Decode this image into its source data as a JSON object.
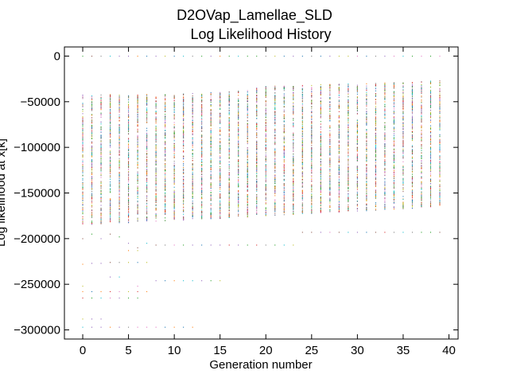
{
  "chart_data": {
    "type": "scatter",
    "title": "D2OVap_Lamellae_SLD",
    "subtitle": "Log Likelihood History",
    "xlabel": "Generation number",
    "ylabel": "Log likelihood at x[k]",
    "xlim": [
      -2,
      41
    ],
    "ylim": [
      -310000,
      10000
    ],
    "xticks": [
      0,
      5,
      10,
      15,
      20,
      25,
      30,
      35,
      40
    ],
    "yticks": [
      0,
      -50000,
      -100000,
      -150000,
      -200000,
      -250000,
      -300000
    ],
    "x_tick_labels": [
      "0",
      "5",
      "10",
      "15",
      "20",
      "25",
      "30",
      "35",
      "40"
    ],
    "y_tick_labels": [
      "0",
      "−50000",
      "−100000",
      "−150000",
      "−200000",
      "−250000",
      "−300000"
    ],
    "grid": false,
    "marker": "dot",
    "generations": {
      "start": 0,
      "end": 39
    },
    "series": [
      {
        "description": "population members per generation",
        "dense_band": [
          {
            "x": 0,
            "range": [
              -185000,
              -42000
            ]
          },
          {
            "x": 10,
            "range": [
              -180000,
              -42000
            ]
          },
          {
            "x": 16,
            "range": [
              -178000,
              -38000
            ]
          },
          {
            "x": 20,
            "range": [
              -175000,
              -33000
            ]
          },
          {
            "x": 30,
            "range": [
              -170000,
              -30000
            ]
          },
          {
            "x": 39,
            "range": [
              -165000,
              -27000
            ]
          }
        ],
        "outliers": [
          {
            "x": 0,
            "y": 0
          },
          {
            "x": 1,
            "y": 0
          },
          {
            "x": 2,
            "y": 0
          },
          {
            "x": 3,
            "y": 0
          },
          {
            "x": 4,
            "y": 0
          },
          {
            "x": 5,
            "y": 0
          },
          {
            "x": 6,
            "y": 0
          },
          {
            "x": 7,
            "y": 0
          },
          {
            "x": 8,
            "y": 0
          },
          {
            "x": 9,
            "y": 0
          },
          {
            "x": 10,
            "y": 0
          },
          {
            "x": 11,
            "y": 0
          },
          {
            "x": 12,
            "y": 0
          },
          {
            "x": 13,
            "y": 0
          },
          {
            "x": 14,
            "y": 0
          },
          {
            "x": 15,
            "y": 0
          },
          {
            "x": 16,
            "y": 0
          },
          {
            "x": 17,
            "y": 0
          },
          {
            "x": 18,
            "y": 0
          },
          {
            "x": 19,
            "y": 0
          },
          {
            "x": 20,
            "y": 0
          },
          {
            "x": 21,
            "y": 0
          },
          {
            "x": 22,
            "y": 0
          },
          {
            "x": 23,
            "y": 0
          },
          {
            "x": 24,
            "y": 0
          },
          {
            "x": 25,
            "y": 0
          },
          {
            "x": 26,
            "y": 0
          },
          {
            "x": 27,
            "y": 0
          },
          {
            "x": 28,
            "y": 0
          },
          {
            "x": 29,
            "y": 0
          },
          {
            "x": 30,
            "y": 0
          },
          {
            "x": 31,
            "y": 0
          },
          {
            "x": 32,
            "y": 0
          },
          {
            "x": 33,
            "y": 0
          },
          {
            "x": 34,
            "y": 0
          },
          {
            "x": 35,
            "y": 0
          },
          {
            "x": 36,
            "y": 0
          },
          {
            "x": 37,
            "y": 0
          },
          {
            "x": 38,
            "y": 0
          },
          {
            "x": 39,
            "y": 0
          },
          {
            "x": 0,
            "y": -200000
          },
          {
            "x": 1,
            "y": -195000
          },
          {
            "x": 2,
            "y": -200000
          },
          {
            "x": 3,
            "y": -195000
          },
          {
            "x": 4,
            "y": -198000
          },
          {
            "x": 5,
            "y": -205000
          },
          {
            "x": 6,
            "y": -210000
          },
          {
            "x": 7,
            "y": -205000
          },
          {
            "x": 8,
            "y": -207000
          },
          {
            "x": 9,
            "y": -207000
          },
          {
            "x": 10,
            "y": -207000
          },
          {
            "x": 11,
            "y": -207000
          },
          {
            "x": 12,
            "y": -207000
          },
          {
            "x": 13,
            "y": -207000
          },
          {
            "x": 14,
            "y": -207000
          },
          {
            "x": 15,
            "y": -207000
          },
          {
            "x": 16,
            "y": -207000
          },
          {
            "x": 17,
            "y": -207000
          },
          {
            "x": 18,
            "y": -207000
          },
          {
            "x": 19,
            "y": -207000
          },
          {
            "x": 20,
            "y": -207000
          },
          {
            "x": 21,
            "y": -207000
          },
          {
            "x": 22,
            "y": -207000
          },
          {
            "x": 23,
            "y": -207000
          },
          {
            "x": 24,
            "y": -193000
          },
          {
            "x": 25,
            "y": -193000
          },
          {
            "x": 26,
            "y": -193000
          },
          {
            "x": 27,
            "y": -193000
          },
          {
            "x": 28,
            "y": -193000
          },
          {
            "x": 29,
            "y": -193000
          },
          {
            "x": 30,
            "y": -193000
          },
          {
            "x": 31,
            "y": -193000
          },
          {
            "x": 32,
            "y": -193000
          },
          {
            "x": 33,
            "y": -193000
          },
          {
            "x": 34,
            "y": -193000
          },
          {
            "x": 35,
            "y": -193000
          },
          {
            "x": 36,
            "y": -193000
          },
          {
            "x": 37,
            "y": -193000
          },
          {
            "x": 38,
            "y": -193000
          },
          {
            "x": 39,
            "y": -193000
          },
          {
            "x": 5,
            "y": -213000
          },
          {
            "x": 6,
            "y": -213000
          },
          {
            "x": 0,
            "y": -228000
          },
          {
            "x": 1,
            "y": -227000
          },
          {
            "x": 2,
            "y": -227000
          },
          {
            "x": 3,
            "y": -226000
          },
          {
            "x": 4,
            "y": -226000
          },
          {
            "x": 5,
            "y": -226000
          },
          {
            "x": 6,
            "y": -226000
          },
          {
            "x": 7,
            "y": -226000
          },
          {
            "x": 3,
            "y": -242000
          },
          {
            "x": 4,
            "y": -242000
          },
          {
            "x": 8,
            "y": -246000
          },
          {
            "x": 9,
            "y": -246000
          },
          {
            "x": 10,
            "y": -246000
          },
          {
            "x": 11,
            "y": -246000
          },
          {
            "x": 12,
            "y": -246000
          },
          {
            "x": 13,
            "y": -246000
          },
          {
            "x": 14,
            "y": -246000
          },
          {
            "x": 15,
            "y": -246000
          },
          {
            "x": 0,
            "y": -252000
          },
          {
            "x": 6,
            "y": -252000
          },
          {
            "x": 0,
            "y": -258000
          },
          {
            "x": 1,
            "y": -258000
          },
          {
            "x": 2,
            "y": -258000
          },
          {
            "x": 3,
            "y": -258000
          },
          {
            "x": 4,
            "y": -258000
          },
          {
            "x": 5,
            "y": -258000
          },
          {
            "x": 6,
            "y": -258000
          },
          {
            "x": 7,
            "y": -258000
          },
          {
            "x": 0,
            "y": -265000
          },
          {
            "x": 1,
            "y": -265000
          },
          {
            "x": 2,
            "y": -265000
          },
          {
            "x": 3,
            "y": -265000
          },
          {
            "x": 4,
            "y": -265000
          },
          {
            "x": 5,
            "y": -265000
          },
          {
            "x": 6,
            "y": -265000
          },
          {
            "x": 0,
            "y": -288000
          },
          {
            "x": 1,
            "y": -288000
          },
          {
            "x": 2,
            "y": -288000
          },
          {
            "x": 0,
            "y": -297000
          },
          {
            "x": 1,
            "y": -297000
          },
          {
            "x": 2,
            "y": -297000
          },
          {
            "x": 3,
            "y": -297000
          },
          {
            "x": 4,
            "y": -297000
          },
          {
            "x": 5,
            "y": -297000
          },
          {
            "x": 6,
            "y": -297000
          },
          {
            "x": 7,
            "y": -297000
          },
          {
            "x": 8,
            "y": -297000
          },
          {
            "x": 9,
            "y": -297000
          },
          {
            "x": 10,
            "y": -297000
          },
          {
            "x": 11,
            "y": -297000
          },
          {
            "x": 12,
            "y": -297000
          }
        ]
      }
    ],
    "colors": [
      "#1f77b4",
      "#ff7f0e",
      "#2ca02c",
      "#d62728",
      "#9467bd",
      "#8c564b",
      "#e377c2",
      "#7f7f7f",
      "#bcbd22",
      "#17becf"
    ]
  }
}
